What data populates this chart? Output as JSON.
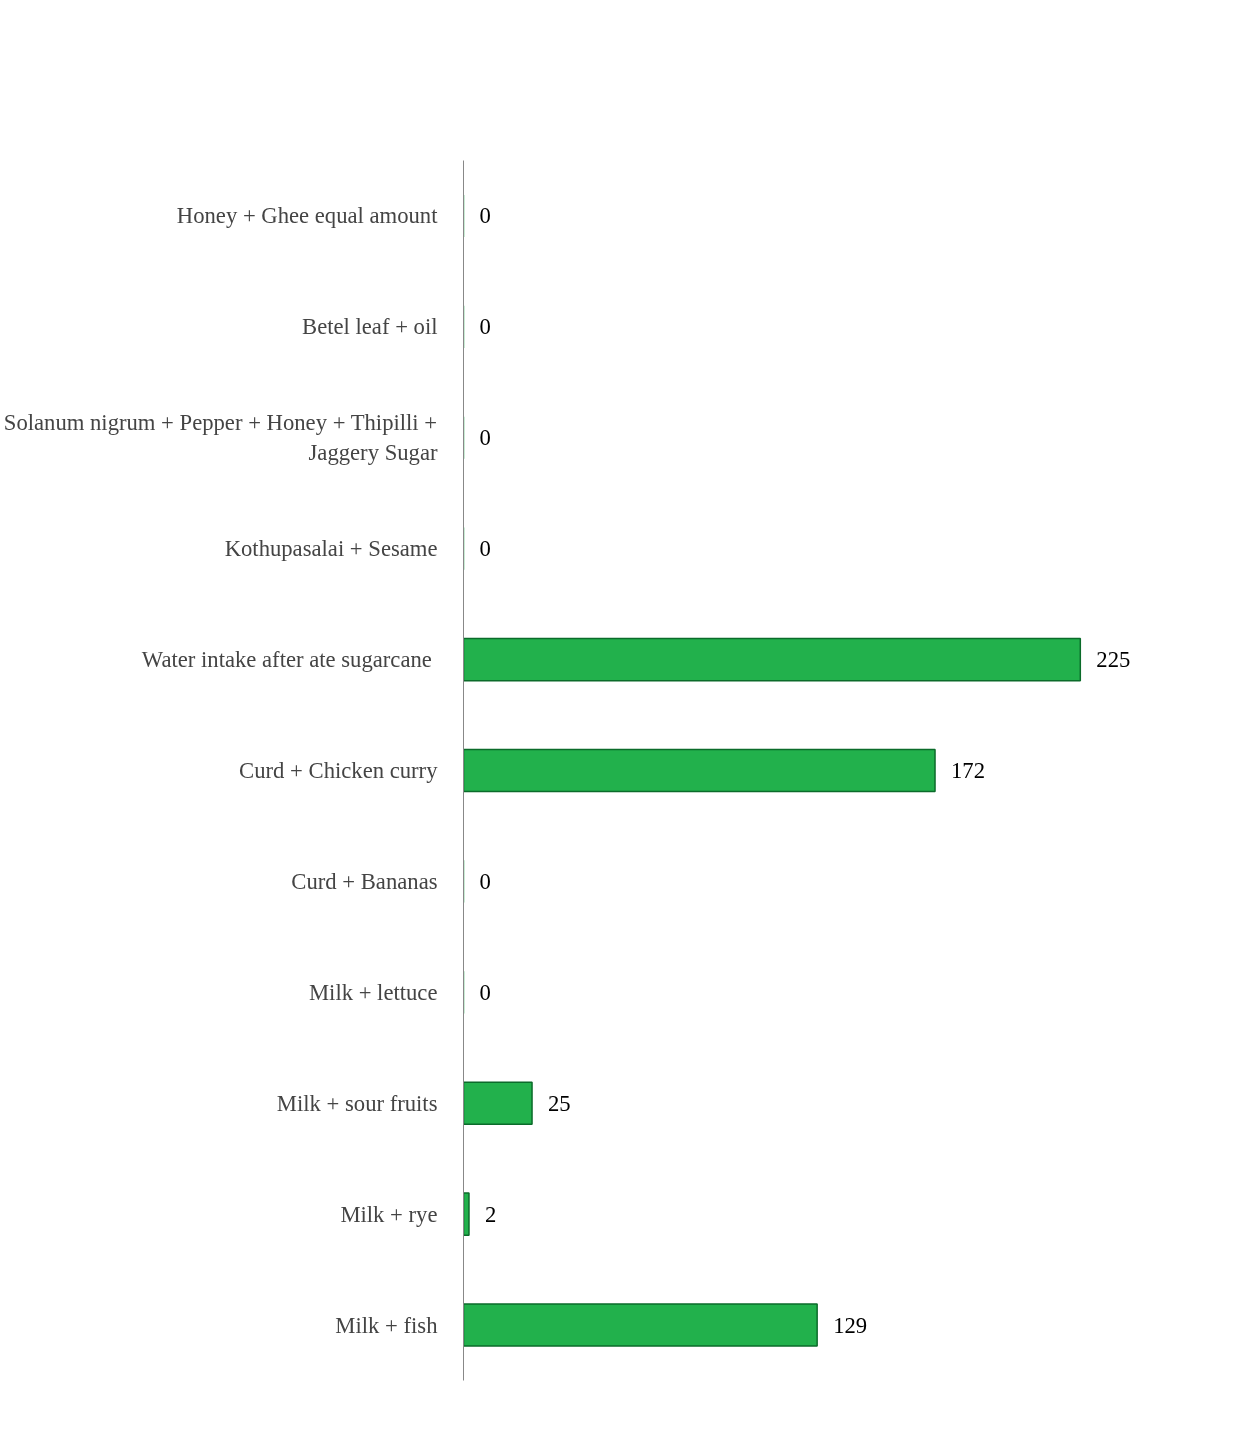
{
  "chart_data": {
    "type": "bar",
    "orientation": "horizontal",
    "categories": [
      "Honey + Ghee equal amount",
      "Betel leaf + oil",
      "Solanum nigrum + Pepper + Honey + Thipilli + Jaggery Sugar",
      "Kothupasalai + Sesame",
      "Water intake after ate  sugarcane",
      "Curd + Chicken curry",
      "Curd + Bananas",
      "Milk + lettuce",
      "Milk + sour fruits",
      "Milk + rye",
      "Milk + fish"
    ],
    "values": [
      0,
      0,
      0,
      0,
      225,
      172,
      0,
      0,
      25,
      2,
      129
    ],
    "color": "#22b14c",
    "data_labels": true,
    "grid": false
  }
}
